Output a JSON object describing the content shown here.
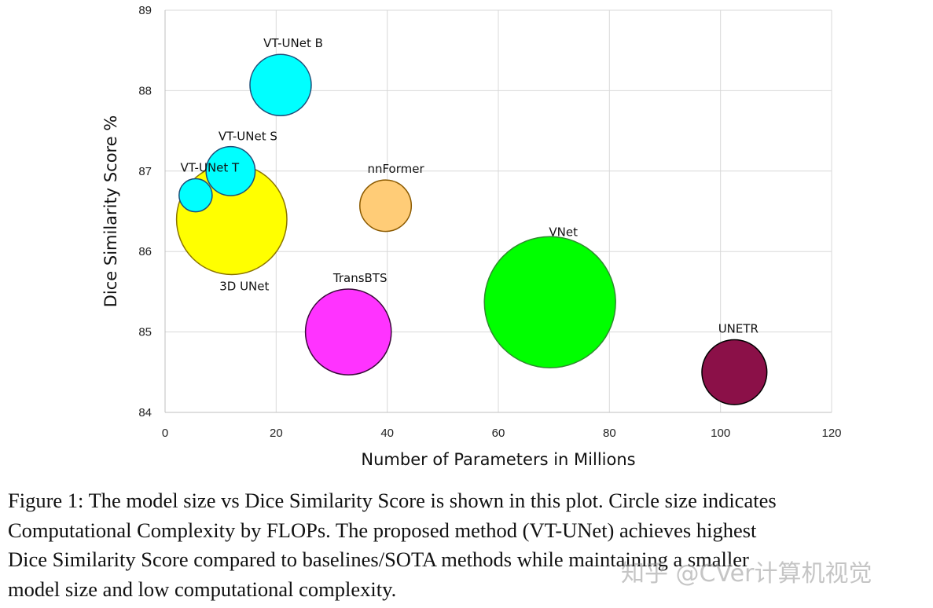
{
  "chart_data": {
    "type": "scatter",
    "subtype": "bubble",
    "xlabel": "Number of Parameters in Millions",
    "ylabel": "Dice Similarity Score %",
    "xlim": [
      0,
      120
    ],
    "ylim": [
      84,
      89
    ],
    "xticks": [
      0,
      20,
      40,
      60,
      80,
      100,
      120
    ],
    "yticks": [
      84,
      85,
      86,
      87,
      88,
      89
    ],
    "grid": true,
    "points": [
      {
        "name": "3D UNet",
        "x": 12,
        "y": 86.4,
        "size_relative": 0.9,
        "color": "#ffff00",
        "edge": "#8b7500"
      },
      {
        "name": "VT-UNet T",
        "x": 5.5,
        "y": 86.7,
        "size_relative": 0.27,
        "color": "#00ffff",
        "edge": "#1f4e79"
      },
      {
        "name": "VT-UNet S",
        "x": 11.8,
        "y": 87.0,
        "size_relative": 0.4,
        "color": "#00ffff",
        "edge": "#1f4e79"
      },
      {
        "name": "VT-UNet B",
        "x": 20.8,
        "y": 88.07,
        "size_relative": 0.5,
        "color": "#00ffff",
        "edge": "#1f4e79"
      },
      {
        "name": "nnFormer",
        "x": 39.7,
        "y": 86.57,
        "size_relative": 0.42,
        "color": "#ffcc77",
        "edge": "#8b5a00"
      },
      {
        "name": "TransBTS",
        "x": 33,
        "y": 85.0,
        "size_relative": 0.7,
        "color": "#ff33ff",
        "edge": "#3a0a3a"
      },
      {
        "name": "VNet",
        "x": 69.3,
        "y": 85.37,
        "size_relative": 1.07,
        "color": "#00ff00",
        "edge": "#2e8b2e"
      },
      {
        "name": "UNETR",
        "x": 102.5,
        "y": 84.5,
        "size_relative": 0.53,
        "color": "#8b1048",
        "edge": "#000000"
      }
    ]
  },
  "caption": {
    "lines": [
      "Figure 1: The model size vs Dice Similarity Score is shown in this plot. Circle size indicates",
      "Computational Complexity by FLOPs. The proposed method (VT-UNet) achieves highest",
      "Dice Similarity Score compared to baselines/SOTA methods while maintaining a smaller",
      "model size and low computational complexity."
    ]
  },
  "watermark": "知乎 @CVer计算机视觉"
}
